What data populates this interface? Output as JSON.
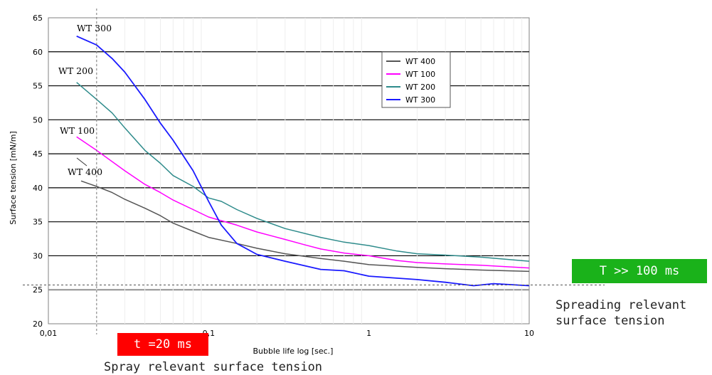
{
  "chart_data": {
    "type": "line",
    "xscale": "log",
    "xlim": [
      0.01,
      10
    ],
    "ylim": [
      20,
      65
    ],
    "xticks": [
      "0,01",
      "0,1",
      "1",
      "10"
    ],
    "yticks": [
      "20",
      "25",
      "30",
      "35",
      "40",
      "45",
      "50",
      "55",
      "60",
      "65"
    ],
    "xlabel": "Bubble life  log  [sec.]",
    "ylabel": "Surface tension [mN/m]",
    "grid": "horizontal",
    "legend": {
      "position": "top-right",
      "entries": [
        "WT 400",
        "WT 100",
        "WT 200",
        "WT 300"
      ]
    },
    "series": [
      {
        "name": "WT 400",
        "color": "#555555",
        "x": [
          0.016,
          0.02,
          0.025,
          0.03,
          0.04,
          0.05,
          0.06,
          0.08,
          0.1,
          0.15,
          0.2,
          0.3,
          0.5,
          0.7,
          1,
          2,
          3,
          5,
          10
        ],
        "y": [
          41,
          40.2,
          39.3,
          38.3,
          37,
          35.9,
          34.8,
          33.6,
          32.7,
          31.8,
          31.1,
          30.3,
          29.6,
          29.2,
          28.7,
          28.3,
          28.1,
          27.9,
          27.7
        ]
      },
      {
        "name": "WT 100",
        "color": "#ff00ff",
        "x": [
          0.015,
          0.02,
          0.03,
          0.04,
          0.05,
          0.06,
          0.08,
          0.1,
          0.15,
          0.2,
          0.3,
          0.4,
          0.5,
          0.7,
          1,
          1.5,
          2,
          3,
          5,
          10
        ],
        "y": [
          47.5,
          45.5,
          42.5,
          40.5,
          39.3,
          38.2,
          36.8,
          35.7,
          34.5,
          33.5,
          32.4,
          31.6,
          31,
          30.4,
          30,
          29.3,
          29,
          28.8,
          28.6,
          28.2
        ]
      },
      {
        "name": "WT 200",
        "color": "#2e8b8b",
        "x": [
          0.015,
          0.02,
          0.025,
          0.03,
          0.04,
          0.05,
          0.06,
          0.08,
          0.1,
          0.12,
          0.15,
          0.2,
          0.3,
          0.5,
          0.7,
          1,
          1.5,
          2,
          3,
          5,
          10
        ],
        "y": [
          55.5,
          53,
          51,
          48.8,
          45.5,
          43.6,
          41.8,
          40.2,
          38.5,
          38,
          36.8,
          35.5,
          34,
          32.7,
          32,
          31.5,
          30.7,
          30.3,
          30.1,
          29.8,
          29.2
        ]
      },
      {
        "name": "WT 300",
        "color": "#1a1aff",
        "x": [
          0.015,
          0.02,
          0.025,
          0.03,
          0.04,
          0.05,
          0.06,
          0.08,
          0.1,
          0.12,
          0.15,
          0.2,
          0.3,
          0.5,
          0.7,
          1,
          2,
          3,
          4.5,
          6,
          10
        ],
        "y": [
          62.3,
          61,
          59,
          57,
          53,
          49.5,
          47,
          42.5,
          38,
          34.5,
          31.8,
          30.2,
          29.2,
          28,
          27.8,
          27,
          26.5,
          26.1,
          25.6,
          25.9,
          25.6
        ]
      }
    ],
    "series_labels": [
      "WT 300",
      "WT 200",
      "WT 100",
      "WT 400"
    ],
    "annotations": {
      "t_label": "t =20 ms",
      "T_label": "T >> 100 ms",
      "spray_caption": "Spray relevant surface tension",
      "spread_caption_line1": "Spreading relevant",
      "spread_caption_line2": "surface tension",
      "vline_x": 0.02,
      "hline_y": 25.7
    }
  }
}
